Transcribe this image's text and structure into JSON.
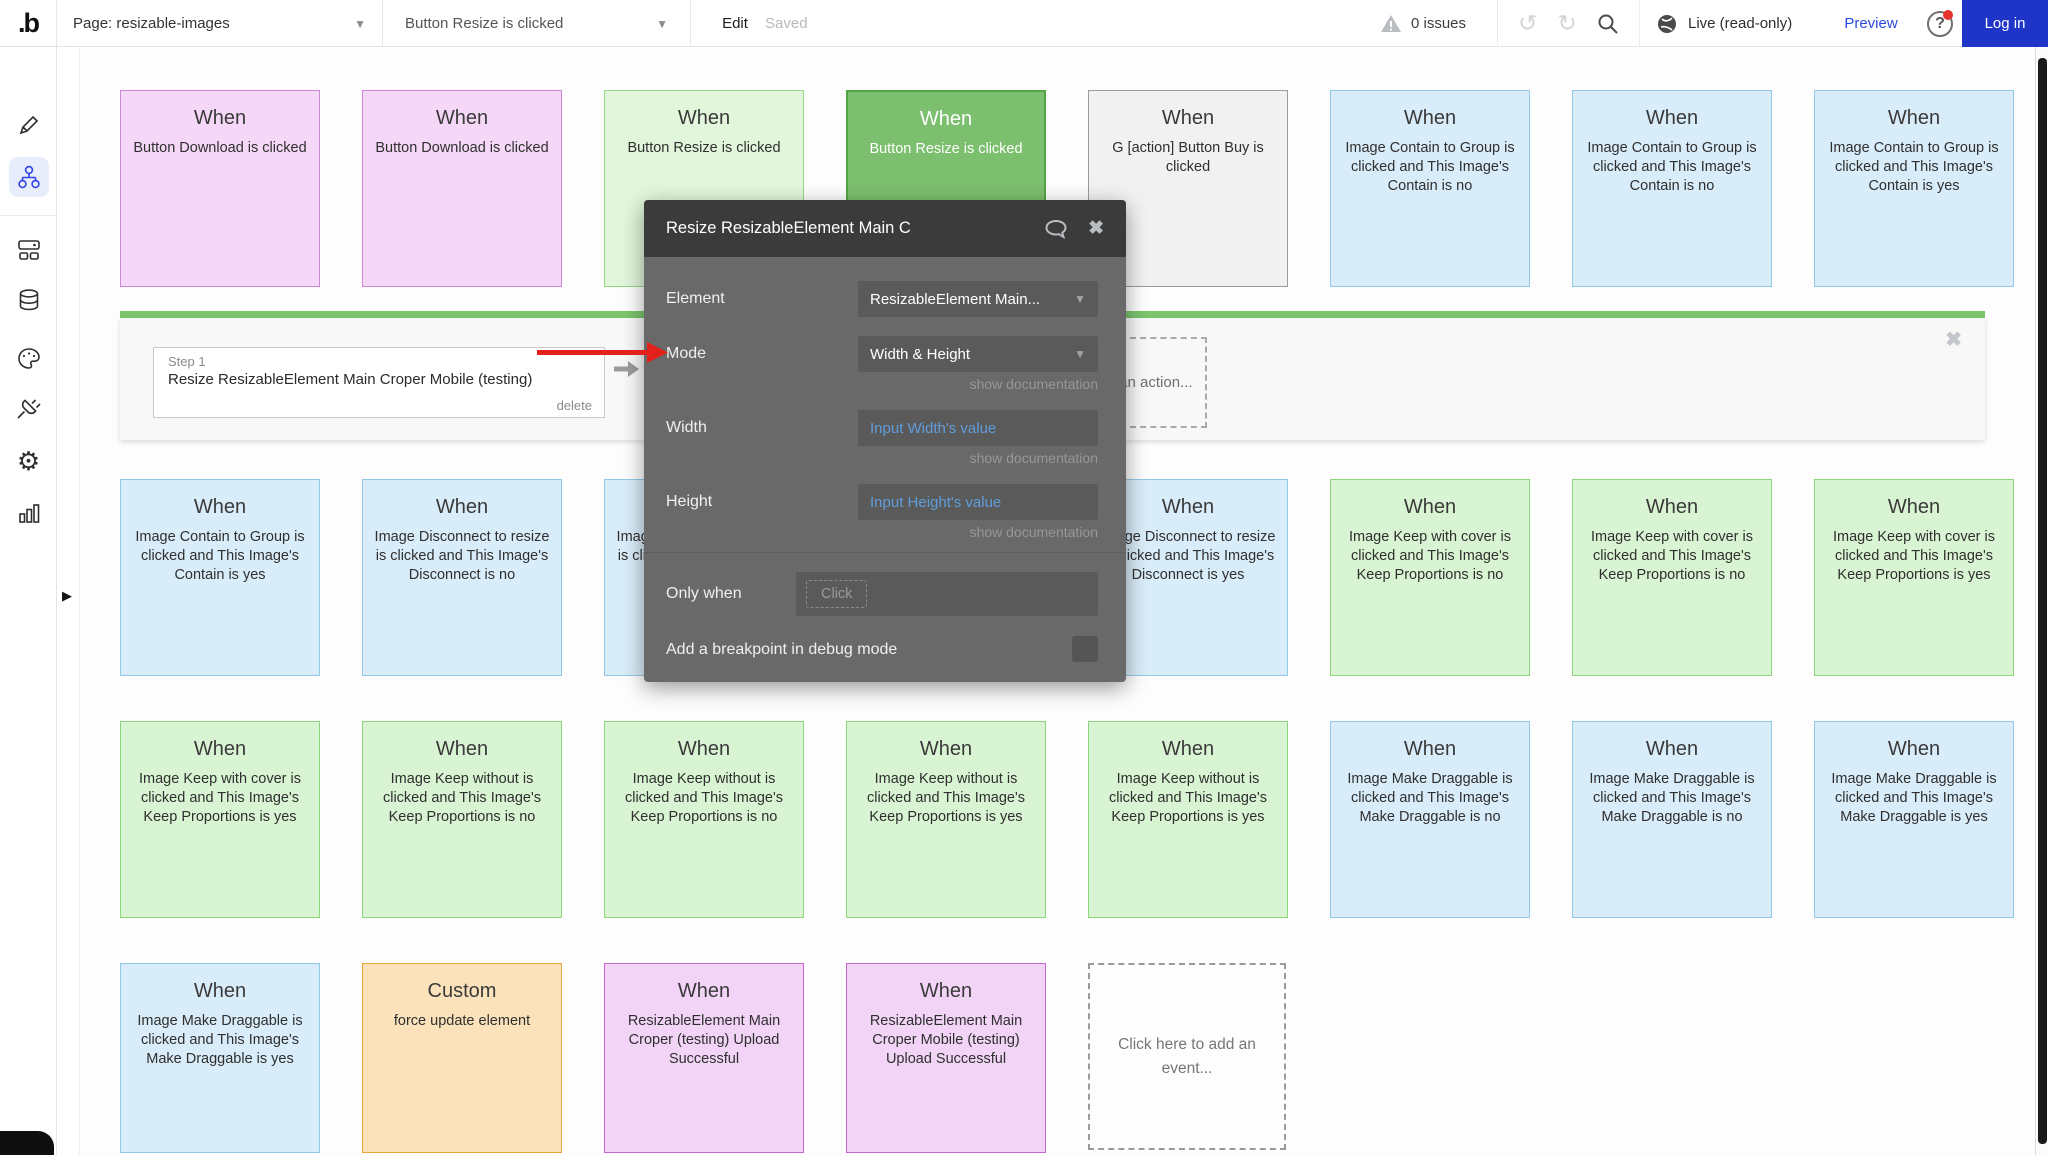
{
  "topbar": {
    "logo": ".b",
    "page_selector": "Page: resizable-images",
    "workflow_selector": "Button Resize is clicked",
    "edit_label": "Edit",
    "saved_label": "Saved",
    "issues_label": "0 issues",
    "live_label": "Live (read-only)",
    "preview_label": "Preview",
    "help_label": "?",
    "login_label": "Log in"
  },
  "sidebar": {
    "items": [
      {
        "icon": "pencil-icon",
        "selected": false
      },
      {
        "icon": "workflow-icon",
        "selected": true
      },
      {
        "icon": "components-icon",
        "selected": false
      },
      {
        "icon": "database-icon",
        "selected": false
      },
      {
        "icon": "palette-icon",
        "selected": false
      },
      {
        "icon": "plugin-icon",
        "selected": false
      },
      {
        "icon": "gear-icon",
        "selected": false
      },
      {
        "icon": "chart-icon",
        "selected": false
      }
    ]
  },
  "canvas": {
    "rows": [
      {
        "cards": [
          {
            "color": "pink",
            "title": "When",
            "body": "Button Download is clicked"
          },
          {
            "color": "pink",
            "title": "When",
            "body": "Button Download is clicked"
          },
          {
            "color": "greenlight",
            "title": "When",
            "body": "Button Resize is clicked"
          },
          {
            "color": "greensel",
            "title": "When",
            "body": "Button Resize is clicked"
          },
          {
            "color": "gray",
            "title": "When",
            "body": "G [action] Button Buy is clicked"
          },
          {
            "color": "blue",
            "title": "When",
            "body": "Image Contain to Group is clicked and This Image's Contain is no"
          },
          {
            "color": "blue",
            "title": "When",
            "body": "Image Contain to Group is clicked and This Image's Contain is no"
          },
          {
            "color": "blue",
            "title": "When",
            "body": "Image Contain to Group is clicked and This Image's Contain is yes"
          }
        ]
      },
      {
        "cards": [
          {
            "color": "blue",
            "title": "When",
            "body": "Image Contain to Group is clicked and This Image's Contain is yes"
          },
          {
            "color": "blue",
            "title": "When",
            "body": "Image Disconnect to resize is clicked and This Image's Disconnect is no"
          },
          {
            "color": "blue",
            "title": "When",
            "body": "Image Disconnect to resize is clicked and This Image's Disconnect is no"
          },
          {
            "color": "blue",
            "title": "When",
            "body": ""
          },
          {
            "color": "blue",
            "title": "When",
            "body": "Image Disconnect to resize is clicked and This Image's Disconnect is yes"
          },
          {
            "color": "green",
            "title": "When",
            "body": "Image Keep with cover is clicked and This Image's Keep Proportions is no"
          },
          {
            "color": "green",
            "title": "When",
            "body": "Image Keep with cover is clicked and This Image's Keep Proportions is no"
          },
          {
            "color": "green",
            "title": "When",
            "body": "Image Keep with cover is clicked and This Image's Keep Proportions is yes"
          }
        ]
      },
      {
        "cards": [
          {
            "color": "green",
            "title": "When",
            "body": "Image Keep with cover is clicked and This Image's Keep Proportions is yes"
          },
          {
            "color": "green",
            "title": "When",
            "body": "Image Keep without is clicked and This Image's Keep Proportions is no"
          },
          {
            "color": "green",
            "title": "When",
            "body": "Image Keep without is clicked and This Image's Keep Proportions is no"
          },
          {
            "color": "green",
            "title": "When",
            "body": "Image Keep without is clicked and This Image's Keep Proportions is yes"
          },
          {
            "color": "green",
            "title": "When",
            "body": "Image Keep without is clicked and This Image's Keep Proportions is yes"
          },
          {
            "color": "blue",
            "title": "When",
            "body": "Image Make Draggable is clicked and This Image's Make Draggable is no"
          },
          {
            "color": "blue",
            "title": "When",
            "body": "Image Make Draggable is clicked and This Image's Make Draggable is no"
          },
          {
            "color": "blue",
            "title": "When",
            "body": "Image Make Draggable is clicked and This Image's Make Draggable is yes"
          }
        ]
      },
      {
        "cards": [
          {
            "color": "blue",
            "title": "When",
            "body": "Image Make Draggable is clicked and This Image's Make Draggable is yes"
          },
          {
            "color": "orange",
            "title": "Custom",
            "body": "force update element"
          },
          {
            "color": "purple",
            "title": "When",
            "body": "ResizableElement Main Croper (testing) Upload Successful"
          },
          {
            "color": "purple",
            "title": "When",
            "body": "ResizableElement Main Croper Mobile (testing) Upload Successful"
          }
        ]
      }
    ],
    "add_event_label": "Click here to add an event...",
    "step_row": {
      "step_label": "Step 1",
      "step_title": "Resize ResizableElement Main Croper Mobile (testing)",
      "delete_label": "delete",
      "add_action_label": "Click here to add an action..."
    }
  },
  "modal": {
    "title": "Resize ResizableElement Main C",
    "element_label": "Element",
    "element_value": "ResizableElement Main...",
    "mode_label": "Mode",
    "mode_value": "Width & Height",
    "width_label": "Width",
    "width_placeholder": "Input Width's value",
    "height_label": "Height",
    "height_placeholder": "Input Height's value",
    "show_documentation": "show documentation",
    "only_when_label": "Only when",
    "click_chip": "Click",
    "breakpoint_label": "Add a breakpoint in debug mode"
  },
  "colors": {
    "accent_blue": "#1e35c8",
    "preview_blue": "#2b4ae0",
    "selected_green_bar": "#7cc56d",
    "red_arrow": "#e2211c",
    "modal_header": "#3b3b3b",
    "modal_body": "#696969",
    "card_pink": "#f5d8f7",
    "card_blue": "#d9ecf9",
    "card_green": "#d9f4d2",
    "card_green_selected": "#7cbf6e",
    "card_orange": "#fbe2ba",
    "card_purple": "#f2d4f7",
    "card_gray": "#f1f1f1",
    "expression_blue": "#5f9ddb"
  }
}
